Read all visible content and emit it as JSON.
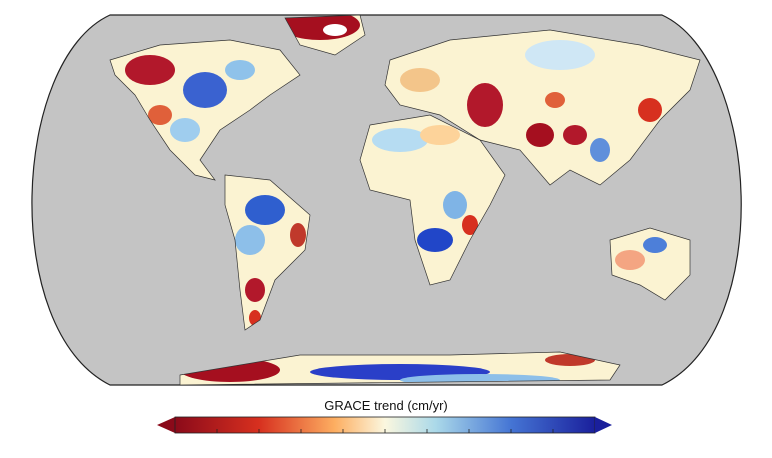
{
  "map": {
    "colorbar_label": "GRACE trend (cm/yr)"
  }
}
